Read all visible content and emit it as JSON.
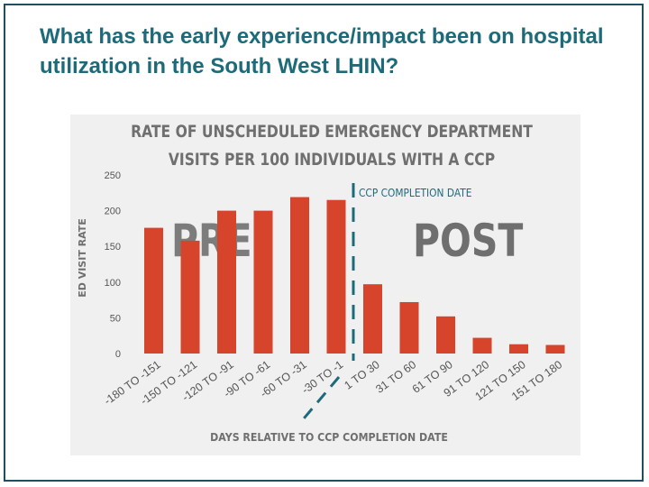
{
  "slide": {
    "title": "What has the early experience/impact been on hospital utilization  in the South West LHIN?"
  },
  "colors": {
    "bar": "#d6452b",
    "marker": "#1d6b7a",
    "title": "#1d6b7a",
    "panel": "#f0f0f0"
  },
  "chart_data": {
    "type": "bar",
    "title": "RATE OF UNSCHEDULED EMERGENCY DEPARTMENT",
    "subtitle": "VISITS PER 100 INDIVIDUALS WITH A CCP",
    "ylabel": "ED VISIT RATE",
    "xlabel": "DAYS RELATIVE TO CCP COMPLETION DATE",
    "ylim": [
      0,
      250
    ],
    "yticks": [
      0,
      50,
      100,
      150,
      200,
      250
    ],
    "categories": [
      "-180 TO -151",
      "-150 TO -121",
      "-120 TO -91",
      "-90 TO -61",
      "-60 TO -31",
      "-30 TO -1",
      "1 TO 30",
      "31 TO 60",
      "61 TO 90",
      "91 TO 120",
      "121 TO 150",
      "151 TO 180"
    ],
    "values": [
      176,
      158,
      200,
      200,
      219,
      215,
      97,
      72,
      52,
      22,
      13,
      12
    ],
    "grid": false,
    "annotations": {
      "marker": "CCP COMPLETION DATE",
      "pre": "PRE",
      "post": "POST"
    }
  }
}
